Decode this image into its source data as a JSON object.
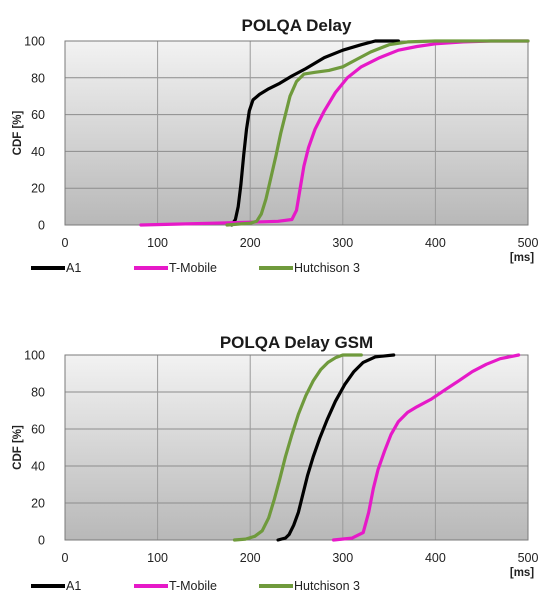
{
  "chart_data": [
    {
      "type": "line",
      "title": "POLQA Delay",
      "ylabel": "CDF [%]",
      "xunit": "[ms]",
      "xlim": [
        0,
        500
      ],
      "ylim": [
        0,
        100
      ],
      "xticks": [
        "0",
        "100",
        "200",
        "300",
        "400",
        "500"
      ],
      "yticks": [
        "0",
        "20",
        "40",
        "60",
        "80",
        "100"
      ],
      "grid": true,
      "legend_position": "bottom",
      "series": [
        {
          "name": "A1",
          "color": "#000000",
          "points": [
            [
              180,
              0
            ],
            [
              184,
              3
            ],
            [
              187,
              10
            ],
            [
              190,
              22
            ],
            [
              193,
              38
            ],
            [
              196,
              52
            ],
            [
              199,
              62
            ],
            [
              203,
              68
            ],
            [
              210,
              71
            ],
            [
              220,
              74
            ],
            [
              232,
              77
            ],
            [
              245,
              81
            ],
            [
              260,
              85
            ],
            [
              280,
              91
            ],
            [
              300,
              95
            ],
            [
              320,
              98
            ],
            [
              335,
              100
            ],
            [
              360,
              100
            ]
          ]
        },
        {
          "name": "T-Mobile",
          "color": "#e619c8",
          "points": [
            [
              82,
              0
            ],
            [
              120,
              0.5
            ],
            [
              160,
              1
            ],
            [
              200,
              1.5
            ],
            [
              230,
              2
            ],
            [
              245,
              3
            ],
            [
              250,
              8
            ],
            [
              254,
              20
            ],
            [
              258,
              32
            ],
            [
              263,
              42
            ],
            [
              270,
              52
            ],
            [
              280,
              62
            ],
            [
              292,
              72
            ],
            [
              305,
              80
            ],
            [
              320,
              86
            ],
            [
              340,
              91
            ],
            [
              360,
              95
            ],
            [
              380,
              97
            ],
            [
              400,
              98.5
            ],
            [
              430,
              99.5
            ],
            [
              460,
              100
            ],
            [
              500,
              100
            ]
          ]
        },
        {
          "name": "Hutchison 3",
          "color": "#6f9a3c",
          "points": [
            [
              175,
              0
            ],
            [
              200,
              1
            ],
            [
              207,
              2
            ],
            [
              212,
              6
            ],
            [
              217,
              14
            ],
            [
              222,
              25
            ],
            [
              228,
              38
            ],
            [
              233,
              50
            ],
            [
              238,
              60
            ],
            [
              243,
              70
            ],
            [
              250,
              78
            ],
            [
              258,
              82
            ],
            [
              270,
              83
            ],
            [
              285,
              84
            ],
            [
              300,
              86
            ],
            [
              315,
              90
            ],
            [
              330,
              94
            ],
            [
              350,
              98
            ],
            [
              370,
              99.5
            ],
            [
              400,
              100
            ],
            [
              500,
              100
            ]
          ]
        }
      ]
    },
    {
      "type": "line",
      "title": "POLQA Delay GSM",
      "ylabel": "CDF [%]",
      "xunit": "[ms]",
      "xlim": [
        0,
        500
      ],
      "ylim": [
        0,
        100
      ],
      "xticks": [
        "0",
        "100",
        "200",
        "300",
        "400",
        "500"
      ],
      "yticks": [
        "0",
        "20",
        "40",
        "60",
        "80",
        "100"
      ],
      "grid": true,
      "legend_position": "bottom",
      "series": [
        {
          "name": "A1",
          "color": "#000000",
          "points": [
            [
              230,
              0
            ],
            [
              238,
              1
            ],
            [
              242,
              3
            ],
            [
              247,
              8
            ],
            [
              252,
              15
            ],
            [
              257,
              25
            ],
            [
              262,
              35
            ],
            [
              268,
              45
            ],
            [
              275,
              55
            ],
            [
              283,
              65
            ],
            [
              292,
              75
            ],
            [
              302,
              84
            ],
            [
              312,
              91
            ],
            [
              322,
              96
            ],
            [
              335,
              99
            ],
            [
              355,
              100
            ]
          ]
        },
        {
          "name": "T-Mobile",
          "color": "#e619c8",
          "points": [
            [
              290,
              0
            ],
            [
              310,
              1
            ],
            [
              322,
              4
            ],
            [
              328,
              15
            ],
            [
              333,
              28
            ],
            [
              338,
              38
            ],
            [
              345,
              48
            ],
            [
              352,
              57
            ],
            [
              360,
              64
            ],
            [
              370,
              69
            ],
            [
              380,
              72
            ],
            [
              395,
              76
            ],
            [
              410,
              81
            ],
            [
              425,
              86
            ],
            [
              440,
              91
            ],
            [
              455,
              95
            ],
            [
              470,
              98
            ],
            [
              490,
              100
            ]
          ]
        },
        {
          "name": "Hutchison 3",
          "color": "#6f9a3c",
          "points": [
            [
              183,
              0
            ],
            [
              195,
              0.5
            ],
            [
              205,
              2
            ],
            [
              213,
              5
            ],
            [
              220,
              12
            ],
            [
              226,
              22
            ],
            [
              232,
              33
            ],
            [
              238,
              45
            ],
            [
              245,
              57
            ],
            [
              252,
              68
            ],
            [
              260,
              78
            ],
            [
              268,
              86
            ],
            [
              276,
              92
            ],
            [
              284,
              96
            ],
            [
              292,
              98.5
            ],
            [
              300,
              100
            ],
            [
              320,
              100
            ]
          ]
        }
      ]
    }
  ]
}
